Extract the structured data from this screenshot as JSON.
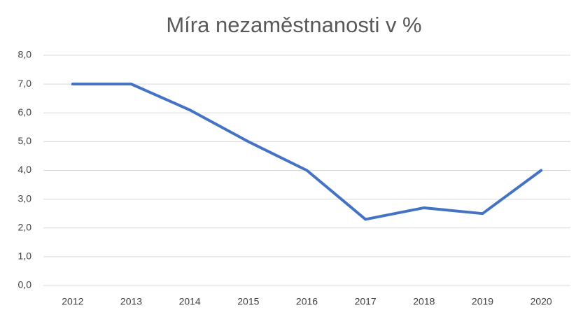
{
  "chart_data": {
    "type": "line",
    "title": "Míra nezaměstnanosti v %",
    "categories": [
      "2012",
      "2013",
      "2014",
      "2015",
      "2016",
      "2017",
      "2018",
      "2019",
      "2020"
    ],
    "values": [
      7.0,
      7.0,
      6.1,
      5.0,
      4.0,
      2.3,
      2.7,
      2.5,
      4.0
    ],
    "color": "#4472c4",
    "ylim": [
      0,
      8
    ],
    "yticks": [
      {
        "value": 0,
        "label": "0,0"
      },
      {
        "value": 1,
        "label": "1,0"
      },
      {
        "value": 2,
        "label": "2,0"
      },
      {
        "value": 3,
        "label": "3,0"
      },
      {
        "value": 4,
        "label": "4,0"
      },
      {
        "value": 5,
        "label": "5,0"
      },
      {
        "value": 6,
        "label": "6,0"
      },
      {
        "value": 7,
        "label": "7,0"
      },
      {
        "value": 8,
        "label": "8,0"
      }
    ],
    "grid": true
  }
}
